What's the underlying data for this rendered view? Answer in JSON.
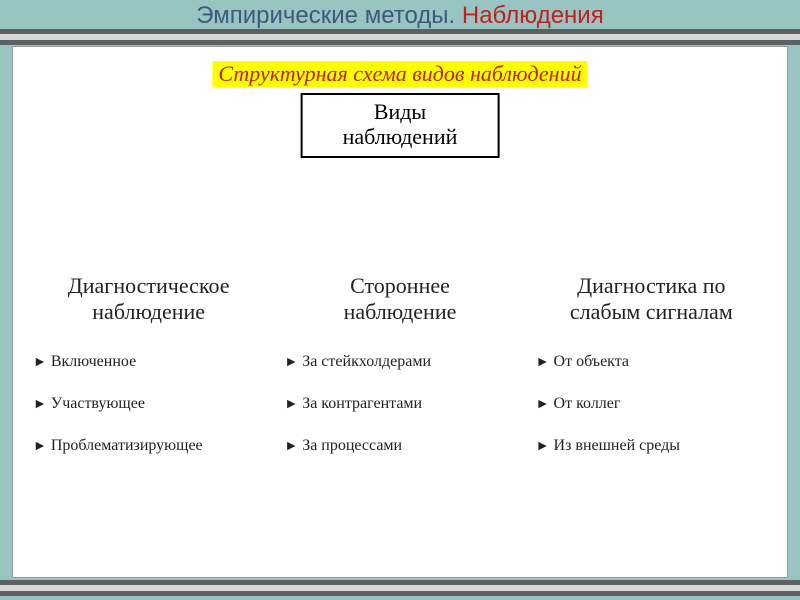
{
  "colors": {
    "page_bg": "#98c4c2",
    "frame_dark": "#5d6060",
    "frame_light": "#d6d8d8",
    "title_a": "#3d5a7a",
    "title_b": "#c02020",
    "subtitle_bg": "#ffff00",
    "subtitle_fg": "#c02020",
    "text": "#222222"
  },
  "title": {
    "part_a": "Эмпирические методы. ",
    "part_b": "Наблюдения"
  },
  "subtitle": "Структурная схема видов наблюдений",
  "root": {
    "line1": "Виды",
    "line2": "наблюдений"
  },
  "columns": [
    {
      "head_line1": "Диагностическое",
      "head_line2": "наблюдение",
      "items": [
        "Включенное",
        "Участвующее",
        "Проблематизирующее"
      ]
    },
    {
      "head_line1": "Стороннее",
      "head_line2": "наблюдение",
      "items": [
        "За стейкхолдерами",
        "За контрагентами",
        "За процессами"
      ]
    },
    {
      "head_line1": "Диагностика по",
      "head_line2": "слабым сигналам",
      "items": [
        "От объекта",
        "От коллег",
        "Из внешней среды"
      ]
    }
  ]
}
